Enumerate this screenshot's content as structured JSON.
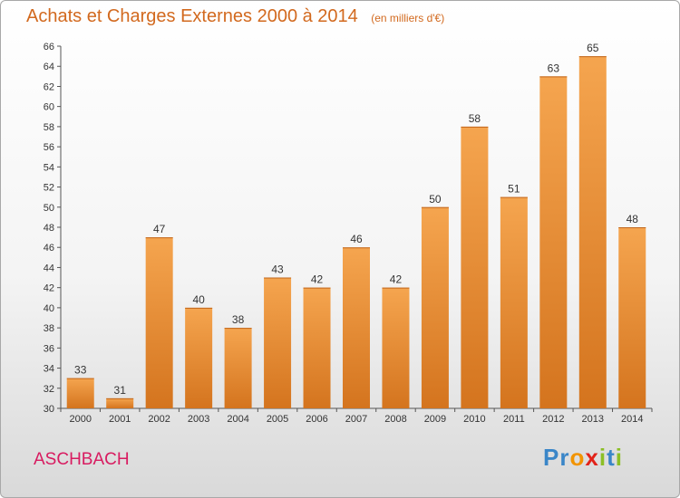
{
  "chart_data": {
    "type": "bar",
    "title": "Achats et Charges Externes 2000 à 2014",
    "subtitle": "(en milliers d'€)",
    "categories": [
      "2000",
      "2001",
      "2002",
      "2003",
      "2004",
      "2005",
      "2006",
      "2007",
      "2008",
      "2009",
      "2010",
      "2011",
      "2012",
      "2013",
      "2014"
    ],
    "values": [
      33,
      31,
      47,
      40,
      38,
      43,
      42,
      46,
      42,
      50,
      58,
      51,
      63,
      65,
      48
    ],
    "ylim": [
      30,
      66
    ],
    "ytick_step": 2,
    "grid": false,
    "bar_color_top": "#f5a54f",
    "bar_color_bottom": "#d4741e"
  },
  "location": "ASCHBACH",
  "brand": {
    "text": "Proxiti",
    "letters": [
      {
        "ch": "P",
        "color": "#3a86c8"
      },
      {
        "ch": "r",
        "color": "#3a86c8"
      },
      {
        "ch": "o",
        "color": "#f29400"
      },
      {
        "ch": "x",
        "color": "#e2231a"
      },
      {
        "ch": "i",
        "color": "#8cbf26"
      },
      {
        "ch": "t",
        "color": "#3a86c8"
      },
      {
        "ch": "i",
        "color": "#8cbf26"
      }
    ]
  }
}
